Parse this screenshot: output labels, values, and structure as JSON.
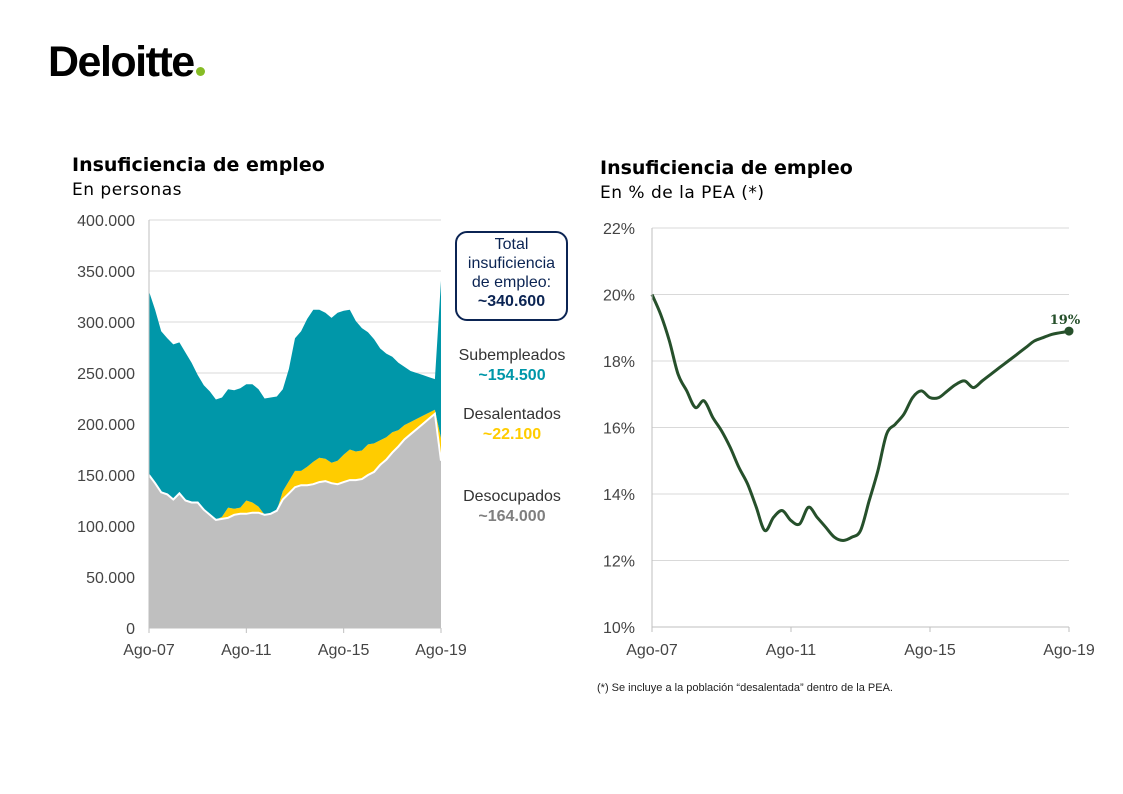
{
  "logo": {
    "text": "Deloitte",
    "dot_color": "#86bc25"
  },
  "colors": {
    "desocupados": "#bfbfbf",
    "desalentados": "#ffcc00",
    "subempleados": "#0097a9",
    "line": "#26502b",
    "total_box": "#0b2453"
  },
  "chart_data": [
    {
      "type": "area",
      "stacked": true,
      "title": "Insuficiencia de empleo",
      "subtitle": "En personas",
      "x_tick_labels": [
        "Ago-07",
        "Ago-11",
        "Ago-15",
        "Ago-19"
      ],
      "y_tick_labels": [
        "0",
        "50.000",
        "100.000",
        "150.000",
        "200.000",
        "250.000",
        "300.000",
        "350.000",
        "400.000"
      ],
      "ylim": [
        0,
        400000
      ],
      "grid": true,
      "x": [
        2007.58,
        2007.83,
        2008.08,
        2008.33,
        2008.58,
        2008.83,
        2009.08,
        2009.33,
        2009.58,
        2009.83,
        2010.08,
        2010.33,
        2010.58,
        2010.83,
        2011.08,
        2011.33,
        2011.58,
        2011.83,
        2012.08,
        2012.33,
        2012.58,
        2012.83,
        2013.08,
        2013.33,
        2013.58,
        2013.83,
        2014.08,
        2014.33,
        2014.58,
        2014.83,
        2015.08,
        2015.33,
        2015.58,
        2015.83,
        2016.08,
        2016.33,
        2016.58,
        2016.83,
        2017.08,
        2017.33,
        2017.58,
        2017.83,
        2018.08,
        2018.33,
        2018.58,
        2018.83,
        2019.08,
        2019.33,
        2019.58
      ],
      "series": [
        {
          "name": "Desocupados",
          "values": [
            150000,
            142000,
            133000,
            131000,
            126000,
            132000,
            125000,
            123000,
            123000,
            116000,
            111000,
            106000,
            107000,
            108000,
            111000,
            112000,
            112000,
            113000,
            113000,
            111000,
            112000,
            115000,
            126000,
            132000,
            138000,
            140000,
            140000,
            141000,
            143000,
            144000,
            142000,
            141000,
            143000,
            145000,
            145000,
            146000,
            150000,
            153000,
            160000,
            165000,
            172000,
            178000,
            185000,
            190000,
            195000,
            200000,
            205000,
            210000,
            164000
          ]
        },
        {
          "name": "Desalentados",
          "values": [
            0,
            0,
            0,
            0,
            0,
            0,
            0,
            0,
            0,
            0,
            0,
            0,
            2000,
            10000,
            6000,
            6000,
            13000,
            10000,
            6000,
            0,
            0,
            0,
            8000,
            12000,
            16000,
            14000,
            18000,
            22000,
            24000,
            22000,
            20000,
            23000,
            27000,
            30000,
            28000,
            28000,
            30000,
            28000,
            24000,
            22000,
            20000,
            16000,
            14000,
            12000,
            10000,
            8000,
            6000,
            4000,
            22100
          ]
        },
        {
          "name": "Subempleados",
          "values": [
            180000,
            170000,
            158000,
            153000,
            152000,
            148000,
            145000,
            137000,
            125000,
            122000,
            121000,
            118000,
            117000,
            116000,
            116000,
            117000,
            114000,
            116000,
            115000,
            114000,
            114000,
            112000,
            100000,
            110000,
            130000,
            137000,
            145000,
            149000,
            145000,
            143000,
            142000,
            145000,
            141000,
            137000,
            128000,
            120000,
            110000,
            102000,
            90000,
            82000,
            74000,
            66000,
            57000,
            50000,
            45000,
            40000,
            35000,
            30000,
            154500
          ]
        }
      ],
      "annotations": {
        "total": {
          "label": "Total insuficiencia de empleo:",
          "value": "~340.600"
        },
        "subempleados": {
          "label": "Subempleados",
          "value": "~154.500"
        },
        "desalentados": {
          "label": "Desalentados",
          "value": "~22.100"
        },
        "desocupados": {
          "label": "Desocupados",
          "value": "~164.000"
        }
      }
    },
    {
      "type": "line",
      "title": "Insuficiencia de empleo",
      "subtitle": "En % de la PEA (*)",
      "x_tick_labels": [
        "Ago-07",
        "Ago-11",
        "Ago-15",
        "Ago-19"
      ],
      "y_tick_labels": [
        "10%",
        "12%",
        "14%",
        "16%",
        "18%",
        "20%",
        "22%"
      ],
      "ylim": [
        10,
        22
      ],
      "grid": true,
      "x": [
        2007.58,
        2007.83,
        2008.08,
        2008.33,
        2008.58,
        2008.83,
        2009.08,
        2009.33,
        2009.58,
        2009.83,
        2010.08,
        2010.33,
        2010.58,
        2010.83,
        2011.08,
        2011.33,
        2011.58,
        2011.83,
        2012.08,
        2012.33,
        2012.58,
        2012.83,
        2013.08,
        2013.33,
        2013.58,
        2013.83,
        2014.08,
        2014.33,
        2014.58,
        2014.83,
        2015.08,
        2015.33,
        2015.58,
        2015.83,
        2016.08,
        2016.33,
        2016.58,
        2016.83,
        2017.08,
        2017.33,
        2017.58,
        2017.83,
        2018.08,
        2018.33,
        2018.58,
        2018.83,
        2019.08,
        2019.33,
        2019.58
      ],
      "series": [
        {
          "name": "Insuficiencia de empleo",
          "values": [
            20.0,
            19.4,
            18.6,
            17.6,
            17.1,
            16.6,
            16.8,
            16.3,
            15.9,
            15.4,
            14.8,
            14.3,
            13.6,
            12.9,
            13.3,
            13.5,
            13.2,
            13.1,
            13.6,
            13.3,
            13.0,
            12.7,
            12.6,
            12.7,
            12.9,
            13.8,
            14.7,
            15.8,
            16.1,
            16.4,
            16.9,
            17.1,
            16.9,
            16.9,
            17.1,
            17.3,
            17.4,
            17.2,
            17.4,
            17.6,
            17.8,
            18.0,
            18.2,
            18.4,
            18.6,
            18.7,
            18.8,
            18.85,
            18.9
          ]
        }
      ],
      "end_label": "19%"
    }
  ],
  "footnote": "(*) Se incluye a la población “desalentada” dentro de la PEA."
}
